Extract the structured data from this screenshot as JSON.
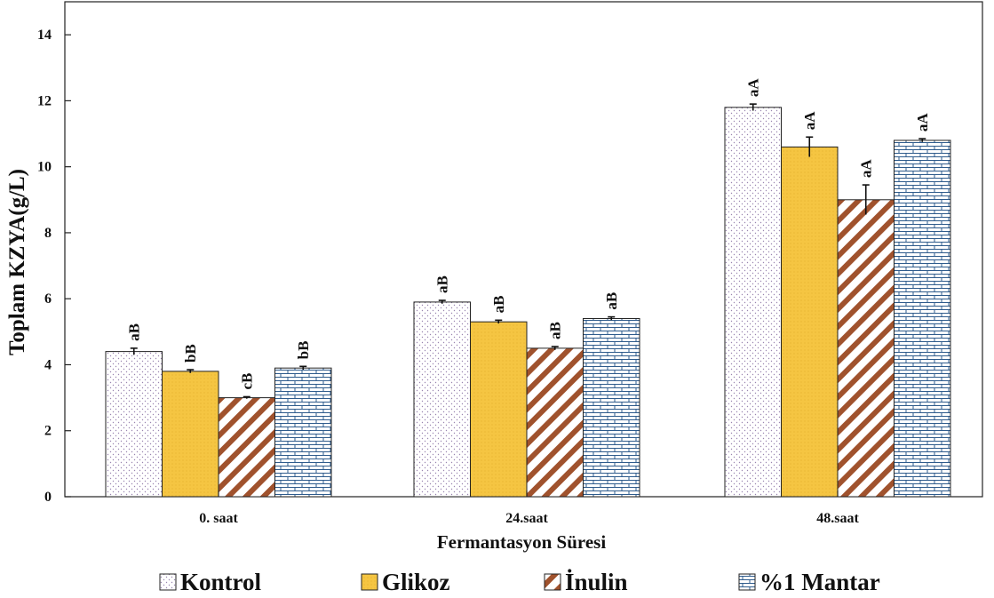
{
  "chart_data": {
    "type": "bar",
    "title": "",
    "xlabel": "Fermantasyon Süresi",
    "ylabel": "Toplam KZYA(g/L)",
    "ylim": [
      0,
      15
    ],
    "yticks": [
      0,
      2,
      4,
      6,
      8,
      10,
      12,
      14
    ],
    "grid": false,
    "legend_position": "bottom",
    "categories": [
      "0. saat",
      "24.saat",
      "48.saat"
    ],
    "series": [
      {
        "name": "Kontrol",
        "values": [
          4.4,
          5.9,
          11.8
        ],
        "errors": [
          0.1,
          0.05,
          0.1
        ],
        "labels": [
          "aB",
          "aB",
          "aA"
        ],
        "color": "#ffffff",
        "pattern": "dots"
      },
      {
        "name": "Glikoz",
        "values": [
          3.8,
          5.3,
          10.6
        ],
        "errors": [
          0.05,
          0.05,
          0.3
        ],
        "labels": [
          "bB",
          "aB",
          "aA"
        ],
        "color": "#f5c542",
        "pattern": "solid"
      },
      {
        "name": "İnulin",
        "values": [
          3.0,
          4.5,
          9.0
        ],
        "errors": [
          0.03,
          0.05,
          0.45
        ],
        "labels": [
          "cB",
          "aB",
          "aA"
        ],
        "color": "#a0522d",
        "pattern": "diagonal"
      },
      {
        "name": "%1 Mantar",
        "values": [
          3.9,
          5.4,
          10.8
        ],
        "errors": [
          0.05,
          0.05,
          0.05
        ],
        "labels": [
          "bB",
          "aB",
          "aA"
        ],
        "color": "#2e5b8c",
        "pattern": "brick"
      }
    ]
  }
}
